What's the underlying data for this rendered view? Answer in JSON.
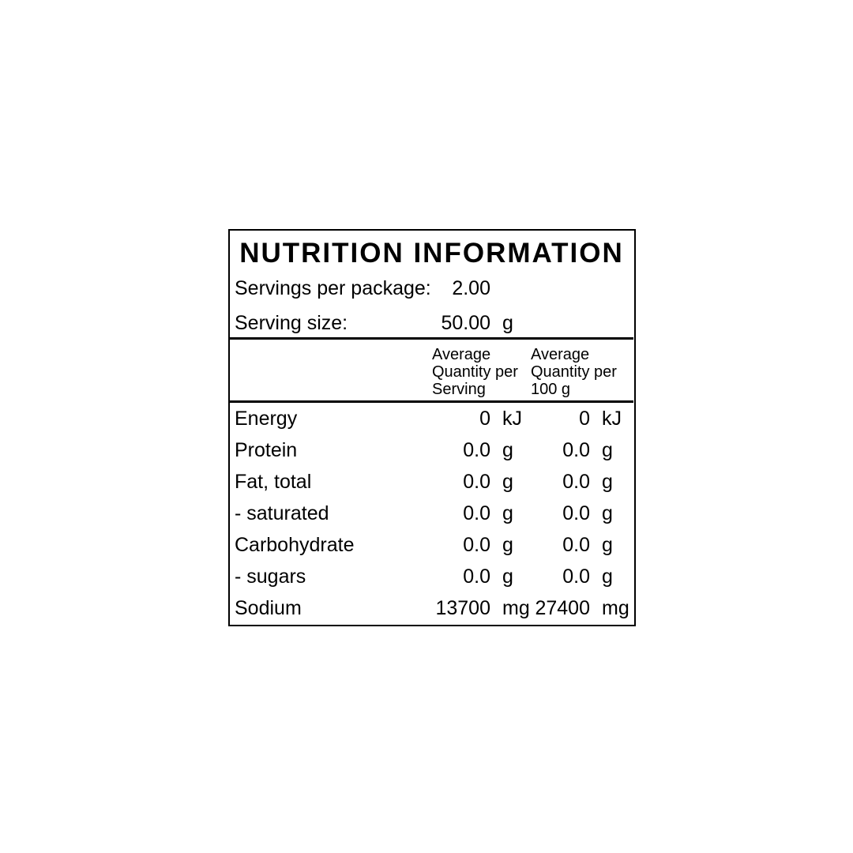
{
  "panel": {
    "title": "NUTRITION INFORMATION",
    "serving_info": {
      "servings_per_package": {
        "label": "Servings per package:",
        "value": "2.00",
        "unit": ""
      },
      "serving_size": {
        "label": "Serving size:",
        "value": "50.00",
        "unit": "g"
      }
    },
    "column_headers": {
      "per_serving": "Average\nQuantity per\nServing",
      "per_100g": "Average\nQuantity per\n100 g"
    },
    "rows": [
      {
        "name": "Energy",
        "per_serving": "0",
        "serving_unit": "kJ",
        "per_100g": "0",
        "per_100g_unit": "kJ"
      },
      {
        "name": "Protein",
        "per_serving": "0.0",
        "serving_unit": "g",
        "per_100g": "0.0",
        "per_100g_unit": "g"
      },
      {
        "name": "Fat, total",
        "per_serving": "0.0",
        "serving_unit": "g",
        "per_100g": "0.0",
        "per_100g_unit": "g"
      },
      {
        "name": "- saturated",
        "per_serving": "0.0",
        "serving_unit": "g",
        "per_100g": "0.0",
        "per_100g_unit": "g"
      },
      {
        "name": "Carbohydrate",
        "per_serving": "0.0",
        "serving_unit": "g",
        "per_100g": "0.0",
        "per_100g_unit": "g"
      },
      {
        "name": "- sugars",
        "per_serving": "0.0",
        "serving_unit": "g",
        "per_100g": "0.0",
        "per_100g_unit": "g"
      },
      {
        "name": "Sodium",
        "per_serving": "13700",
        "serving_unit": "mg",
        "per_100g": "27400",
        "per_100g_unit": "mg"
      }
    ],
    "colors": {
      "text": "#000000",
      "border": "#000000",
      "background": "#ffffff"
    }
  }
}
